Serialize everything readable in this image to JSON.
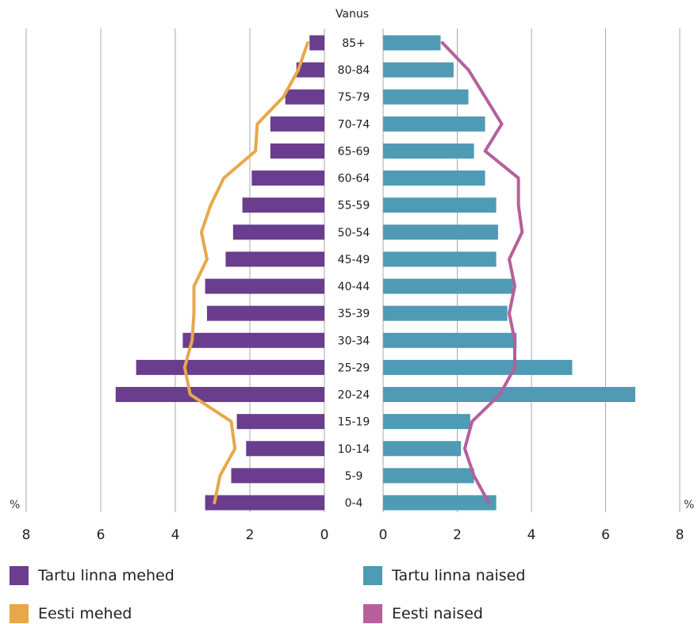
{
  "chart_data": {
    "type": "population-pyramid",
    "title": "Vanus",
    "unit_label": "%",
    "x_range": [
      0,
      8
    ],
    "x_ticks": [
      0,
      2,
      4,
      6,
      8
    ],
    "grid": true,
    "age_groups": [
      "0-4",
      "5-9",
      "10-14",
      "15-19",
      "20-24",
      "25-29",
      "30-34",
      "35-39",
      "40-44",
      "45-49",
      "50-54",
      "55-59",
      "60-64",
      "65-69",
      "70-74",
      "75-79",
      "80-84",
      "85+"
    ],
    "series": [
      {
        "name": "Tartu linna mehed",
        "type": "bar",
        "side": "left",
        "values": [
          3.2,
          2.5,
          2.1,
          2.35,
          5.6,
          5.05,
          3.8,
          3.15,
          3.2,
          2.65,
          2.45,
          2.2,
          1.95,
          1.45,
          1.45,
          1.05,
          0.75,
          0.4
        ]
      },
      {
        "name": "Tartu linna naised",
        "type": "bar",
        "side": "right",
        "values": [
          3.05,
          2.45,
          2.1,
          2.35,
          6.8,
          5.1,
          3.6,
          3.35,
          3.5,
          3.05,
          3.1,
          3.05,
          2.75,
          2.45,
          2.75,
          2.3,
          1.9,
          1.55
        ]
      },
      {
        "name": "Eesti mehed",
        "type": "line",
        "side": "left",
        "values": [
          2.95,
          2.8,
          2.4,
          2.5,
          3.6,
          3.75,
          3.55,
          3.5,
          3.5,
          3.15,
          3.3,
          3.05,
          2.7,
          1.85,
          1.8,
          1.1,
          0.7,
          0.45
        ]
      },
      {
        "name": "Eesti naised",
        "type": "line",
        "side": "right",
        "values": [
          2.85,
          2.45,
          2.2,
          2.4,
          3.15,
          3.55,
          3.55,
          3.4,
          3.55,
          3.4,
          3.75,
          3.65,
          3.65,
          2.75,
          3.2,
          2.75,
          2.3,
          1.6
        ]
      }
    ],
    "colors": {
      "Tartu linna mehed": "#6a3d8f",
      "Tartu linna naised": "#4f9ab5",
      "Eesti mehed": "#e8a84a",
      "Eesti naised": "#b5609b",
      "grid": "#aaaaaa"
    }
  },
  "legend": [
    {
      "label": "Tartu linna mehed",
      "color": "#6a3d8f"
    },
    {
      "label": "Tartu linna naised",
      "color": "#4f9ab5"
    },
    {
      "label": "Eesti mehed",
      "color": "#e8a84a"
    },
    {
      "label": "Eesti naised",
      "color": "#b5609b"
    }
  ]
}
